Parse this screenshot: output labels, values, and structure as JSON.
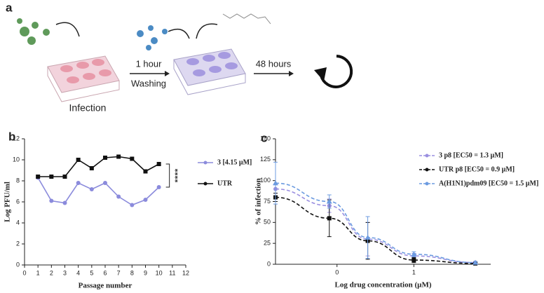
{
  "diagram": {
    "label": "a",
    "texts": [
      "Infection",
      "1 hour",
      "Washing",
      "48 hours"
    ]
  },
  "chart_data": [
    {
      "panel": "b",
      "type": "line",
      "xlabel": "Passage number",
      "ylabel": "Log PFU/ml",
      "x": [
        1,
        2,
        3,
        4,
        5,
        6,
        7,
        8,
        9,
        10
      ],
      "xlim": [
        0,
        12
      ],
      "xticks": [
        0,
        1,
        2,
        3,
        4,
        5,
        6,
        7,
        8,
        9,
        10,
        11,
        12
      ],
      "ylim": [
        0,
        12
      ],
      "yticks": [
        0,
        2,
        4,
        6,
        8,
        10,
        12
      ],
      "annotation": "****",
      "series": [
        {
          "name": "3 [4.15 µM]",
          "color": "#8b8bdc",
          "marker": "circle",
          "values": [
            8.3,
            6.1,
            5.9,
            7.8,
            7.2,
            7.8,
            6.5,
            5.7,
            6.2,
            7.4
          ]
        },
        {
          "name": "UTR",
          "color": "#111111",
          "marker": "square",
          "values": [
            8.4,
            8.4,
            8.4,
            10.0,
            9.2,
            10.2,
            10.3,
            10.1,
            8.9,
            9.6
          ]
        }
      ]
    },
    {
      "panel": "c",
      "type": "line",
      "dashed": true,
      "xlabel": "Log drug concentration (µM)",
      "ylabel": "% of infection",
      "x": [
        -0.8,
        -0.1,
        0.4,
        1.0,
        1.8
      ],
      "xlim": [
        -0.8,
        2.0
      ],
      "xticks": [
        0,
        1
      ],
      "ylim": [
        0,
        150
      ],
      "yticks": [
        0,
        25,
        50,
        75,
        100,
        125,
        150
      ],
      "series": [
        {
          "name": "3 p8 [EC50 = 1.3 µM]",
          "color": "#9a8fe0",
          "marker": "circle",
          "values": [
            90,
            70,
            30,
            10,
            2
          ],
          "errors": [
            5,
            8,
            20,
            3,
            1
          ]
        },
        {
          "name": "UTR p8 [EC50 = 0.9 µM]",
          "color": "#111111",
          "marker": "square",
          "values": [
            80,
            55,
            28,
            5,
            1
          ],
          "errors": [
            5,
            22,
            22,
            3,
            1
          ]
        },
        {
          "name": "A(H1N1)pdm09 [EC50 = 1.5 µM]",
          "color": "#6c9be0",
          "marker": "triangle",
          "values": [
            97,
            75,
            32,
            12,
            2
          ],
          "errors": [
            25,
            8,
            25,
            3,
            1
          ]
        }
      ]
    }
  ]
}
